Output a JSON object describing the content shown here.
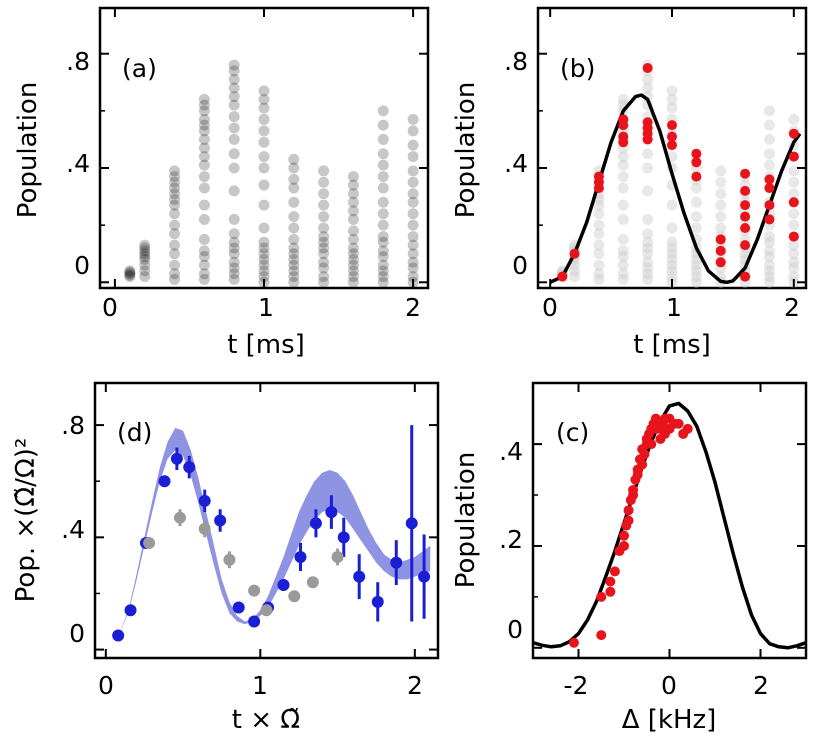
{
  "panels": {
    "a": {
      "label": "(a)",
      "xlabel": "t [ms]",
      "ylabel": "Population",
      "xticks": [
        "0",
        "1",
        "2"
      ],
      "yticks": [
        "0",
        ".4",
        ".8"
      ]
    },
    "b": {
      "label": "(b)",
      "xlabel": "t [ms]",
      "ylabel": "Population",
      "xticks": [
        "0",
        "1",
        "2"
      ],
      "yticks": [
        "0",
        ".4",
        ".8"
      ]
    },
    "d": {
      "label": "(d)",
      "xlabel": "t × Ω̃",
      "ylabel": "Pop. ×(Ω̃/Ω)²",
      "xticks": [
        "0",
        "1",
        "2"
      ],
      "yticks": [
        "0",
        ".4",
        ".8"
      ]
    },
    "c": {
      "label": "(c)",
      "xlabel": "Δ [kHz]",
      "ylabel": "Population",
      "xticks": [
        "-2",
        "0",
        "2"
      ],
      "yticks": [
        "0",
        ".2",
        ".4"
      ]
    }
  },
  "chart_data": [
    {
      "id": "a",
      "type": "scatter",
      "title": "(a)",
      "xlabel": "t [ms]",
      "ylabel": "Population",
      "xlim": [
        -0.1,
        2.1
      ],
      "ylim": [
        -0.02,
        0.96
      ],
      "point_color": "#000000",
      "point_opacity": 0.22,
      "series": [
        {
          "x": 0.1,
          "values": [
            0.02,
            0.025,
            0.03,
            0.035,
            0.04
          ]
        },
        {
          "x": 0.2,
          "values": [
            0.02,
            0.04,
            0.06,
            0.08,
            0.09,
            0.1,
            0.11,
            0.12,
            0.13
          ]
        },
        {
          "x": 0.4,
          "values": [
            0.01,
            0.03,
            0.06,
            0.1,
            0.13,
            0.17,
            0.2,
            0.24,
            0.27,
            0.29,
            0.31,
            0.33,
            0.35,
            0.37,
            0.39
          ]
        },
        {
          "x": 0.6,
          "values": [
            0.01,
            0.03,
            0.06,
            0.09,
            0.11,
            0.15,
            0.22,
            0.27,
            0.33,
            0.37,
            0.41,
            0.44,
            0.47,
            0.5,
            0.53,
            0.55,
            0.57,
            0.6,
            0.62,
            0.64
          ]
        },
        {
          "x": 0.8,
          "values": [
            0.01,
            0.03,
            0.05,
            0.07,
            0.1,
            0.12,
            0.14,
            0.17,
            0.22,
            0.32,
            0.4,
            0.45,
            0.5,
            0.54,
            0.58,
            0.62,
            0.65,
            0.68,
            0.71,
            0.74,
            0.76
          ]
        },
        {
          "x": 1.0,
          "values": [
            0.0,
            0.02,
            0.04,
            0.06,
            0.08,
            0.1,
            0.12,
            0.14,
            0.19,
            0.27,
            0.34,
            0.4,
            0.44,
            0.49,
            0.53,
            0.57,
            0.61,
            0.64,
            0.67
          ]
        },
        {
          "x": 1.2,
          "values": [
            0.0,
            0.02,
            0.04,
            0.06,
            0.08,
            0.1,
            0.12,
            0.15,
            0.19,
            0.23,
            0.28,
            0.33,
            0.36,
            0.4,
            0.43
          ]
        },
        {
          "x": 1.4,
          "values": [
            0.0,
            0.02,
            0.05,
            0.07,
            0.1,
            0.12,
            0.14,
            0.16,
            0.19,
            0.23,
            0.27,
            0.31,
            0.35,
            0.39
          ]
        },
        {
          "x": 1.6,
          "values": [
            0.0,
            0.02,
            0.04,
            0.06,
            0.08,
            0.1,
            0.12,
            0.15,
            0.18,
            0.22,
            0.25,
            0.28,
            0.31,
            0.34,
            0.37
          ]
        },
        {
          "x": 1.8,
          "values": [
            0.0,
            0.02,
            0.04,
            0.06,
            0.09,
            0.11,
            0.14,
            0.16,
            0.2,
            0.24,
            0.28,
            0.33,
            0.37,
            0.41,
            0.45,
            0.5,
            0.55,
            0.6
          ]
        },
        {
          "x": 2.0,
          "values": [
            0.0,
            0.02,
            0.05,
            0.07,
            0.1,
            0.13,
            0.16,
            0.2,
            0.24,
            0.28,
            0.31,
            0.35,
            0.39,
            0.44,
            0.48,
            0.53,
            0.57
          ]
        }
      ]
    },
    {
      "id": "b",
      "type": "scatter",
      "title": "(b)",
      "xlabel": "t [ms]",
      "ylabel": "Population",
      "xlim": [
        -0.1,
        2.1
      ],
      "ylim": [
        -0.02,
        0.96
      ],
      "background_color": "#cccccc",
      "highlight_color": "#e8141c",
      "fit_color": "#000000",
      "fit_curve": {
        "x": [
          0.0,
          0.1,
          0.2,
          0.3,
          0.4,
          0.5,
          0.6,
          0.7,
          0.75,
          0.8,
          0.9,
          1.0,
          1.1,
          1.2,
          1.3,
          1.4,
          1.45,
          1.5,
          1.6,
          1.7,
          1.8,
          1.9,
          2.0,
          2.05
        ],
        "y": [
          0.0,
          0.02,
          0.1,
          0.21,
          0.35,
          0.49,
          0.6,
          0.65,
          0.655,
          0.64,
          0.53,
          0.38,
          0.24,
          0.12,
          0.04,
          0.003,
          0.0,
          0.005,
          0.05,
          0.15,
          0.27,
          0.39,
          0.49,
          0.52
        ]
      },
      "highlight_points": {
        "x": [
          0.1,
          0.2,
          0.4,
          0.4,
          0.4,
          0.6,
          0.6,
          0.6,
          0.6,
          0.8,
          0.8,
          0.8,
          0.8,
          0.8,
          1.0,
          1.0,
          1.0,
          1.2,
          1.2,
          1.2,
          1.4,
          1.4,
          1.4,
          1.6,
          1.6,
          1.6,
          1.6,
          1.6,
          1.6,
          1.6,
          1.8,
          1.8,
          1.8,
          1.8,
          2.0,
          2.0,
          2.0,
          2.0
        ],
        "y": [
          0.02,
          0.1,
          0.33,
          0.35,
          0.37,
          0.49,
          0.51,
          0.55,
          0.57,
          0.5,
          0.52,
          0.54,
          0.56,
          0.75,
          0.48,
          0.51,
          0.55,
          0.37,
          0.42,
          0.45,
          0.07,
          0.11,
          0.15,
          0.02,
          0.13,
          0.19,
          0.23,
          0.27,
          0.32,
          0.38,
          0.22,
          0.27,
          0.33,
          0.36,
          0.16,
          0.28,
          0.44,
          0.52
        ]
      }
    },
    {
      "id": "d",
      "type": "scatter",
      "title": "(d)",
      "xlabel": "t × Ω̃",
      "ylabel": "Pop. ×(Ω̃/Ω)²",
      "xlim": [
        -0.07,
        2.15
      ],
      "ylim": [
        -0.03,
        0.95
      ],
      "band_color": "#8f93e3",
      "band": {
        "x": [
          0.08,
          0.15,
          0.2,
          0.25,
          0.3,
          0.35,
          0.4,
          0.45,
          0.5,
          0.55,
          0.6,
          0.65,
          0.7,
          0.75,
          0.8,
          0.85,
          0.9,
          0.95,
          1.0,
          1.05,
          1.1,
          1.15,
          1.2,
          1.25,
          1.3,
          1.35,
          1.4,
          1.45,
          1.5,
          1.55,
          1.6,
          1.65,
          1.7,
          1.75,
          1.8,
          1.85,
          1.9,
          1.95,
          2.0,
          2.05,
          2.1
        ],
        "lower": [
          0.04,
          0.14,
          0.25,
          0.37,
          0.49,
          0.6,
          0.68,
          0.71,
          0.69,
          0.62,
          0.52,
          0.41,
          0.3,
          0.2,
          0.13,
          0.1,
          0.09,
          0.1,
          0.12,
          0.15,
          0.2,
          0.25,
          0.31,
          0.37,
          0.42,
          0.46,
          0.49,
          0.5,
          0.49,
          0.47,
          0.43,
          0.39,
          0.35,
          0.31,
          0.28,
          0.26,
          0.25,
          0.25,
          0.26,
          0.27,
          0.28
        ],
        "upper": [
          0.04,
          0.15,
          0.27,
          0.4,
          0.53,
          0.65,
          0.74,
          0.79,
          0.78,
          0.71,
          0.61,
          0.49,
          0.37,
          0.25,
          0.17,
          0.12,
          0.1,
          0.11,
          0.14,
          0.19,
          0.26,
          0.33,
          0.41,
          0.49,
          0.55,
          0.6,
          0.63,
          0.64,
          0.63,
          0.6,
          0.55,
          0.49,
          0.43,
          0.38,
          0.34,
          0.32,
          0.31,
          0.32,
          0.33,
          0.35,
          0.37
        ]
      },
      "series": [
        {
          "name": "blue",
          "color": "#1a1fd6",
          "x": [
            0.08,
            0.16,
            0.26,
            0.38,
            0.46,
            0.54,
            0.64,
            0.74,
            0.86,
            0.96,
            1.05,
            1.15,
            1.26,
            1.36,
            1.46,
            1.54,
            1.64,
            1.76,
            1.88,
            1.98,
            2.06
          ],
          "y": [
            0.05,
            0.14,
            0.38,
            0.6,
            0.68,
            0.65,
            0.53,
            0.46,
            0.15,
            0.1,
            0.15,
            0.23,
            0.33,
            0.45,
            0.49,
            0.4,
            0.26,
            0.17,
            0.31,
            0.45,
            0.26
          ],
          "err": [
            0.0,
            0.0,
            0.0,
            0.02,
            0.04,
            0.04,
            0.04,
            0.04,
            0.02,
            0.02,
            0.02,
            0.02,
            0.05,
            0.05,
            0.06,
            0.07,
            0.08,
            0.07,
            0.08,
            0.35,
            0.15
          ]
        },
        {
          "name": "grey",
          "color": "#9a9a9a",
          "x": [
            0.28,
            0.48,
            0.64,
            0.8,
            0.96,
            1.04,
            1.22,
            1.34,
            1.5
          ],
          "y": [
            0.38,
            0.47,
            0.43,
            0.32,
            0.21,
            0.14,
            0.19,
            0.24,
            0.33
          ],
          "err": [
            0.0,
            0.03,
            0.03,
            0.03,
            0.02,
            0.02,
            0.02,
            0.02,
            0.03
          ]
        }
      ]
    },
    {
      "id": "c",
      "type": "scatter",
      "title": "(c)",
      "xlabel": "Δ [kHz]",
      "ylabel": "Population",
      "xlim": [
        -3.0,
        3.0
      ],
      "ylim": [
        -0.02,
        0.52
      ],
      "fit_color": "#000000",
      "point_color": "#e8141c",
      "fit_curve": {
        "x": [
          -3.0,
          -2.8,
          -2.6,
          -2.4,
          -2.2,
          -2.0,
          -1.8,
          -1.6,
          -1.4,
          -1.2,
          -1.0,
          -0.8,
          -0.6,
          -0.4,
          -0.2,
          0.0,
          0.2,
          0.4,
          0.6,
          0.8,
          1.0,
          1.2,
          1.4,
          1.6,
          1.8,
          2.0,
          2.2,
          2.4,
          2.6,
          2.8,
          3.0
        ],
        "y": [
          0.01,
          0.005,
          0.002,
          0.004,
          0.012,
          0.028,
          0.055,
          0.092,
          0.14,
          0.19,
          0.245,
          0.3,
          0.355,
          0.405,
          0.445,
          0.475,
          0.48,
          0.465,
          0.435,
          0.385,
          0.325,
          0.255,
          0.185,
          0.12,
          0.065,
          0.028,
          0.008,
          0.002,
          0.0,
          0.004,
          0.01
        ]
      },
      "points": {
        "x": [
          -2.1,
          -1.5,
          -1.5,
          -1.3,
          -1.3,
          -1.2,
          -1.1,
          -1.0,
          -1.0,
          -0.95,
          -0.9,
          -0.9,
          -0.85,
          -0.8,
          -0.8,
          -0.75,
          -0.7,
          -0.7,
          -0.65,
          -0.6,
          -0.6,
          -0.55,
          -0.5,
          -0.5,
          -0.45,
          -0.4,
          -0.4,
          -0.35,
          -0.3,
          -0.3,
          -0.25,
          -0.2,
          -0.2,
          -0.15,
          -0.1,
          -0.1,
          0.0,
          0.0,
          0.1,
          0.2,
          0.3,
          0.4
        ],
        "y": [
          0.01,
          0.025,
          0.1,
          0.11,
          0.13,
          0.15,
          0.19,
          0.2,
          0.22,
          0.24,
          0.25,
          0.27,
          0.29,
          0.3,
          0.31,
          0.33,
          0.34,
          0.35,
          0.37,
          0.36,
          0.39,
          0.38,
          0.4,
          0.41,
          0.42,
          0.4,
          0.43,
          0.44,
          0.43,
          0.45,
          0.44,
          0.41,
          0.43,
          0.44,
          0.42,
          0.45,
          0.43,
          0.45,
          0.44,
          0.44,
          0.42,
          0.43
        ]
      }
    }
  ]
}
